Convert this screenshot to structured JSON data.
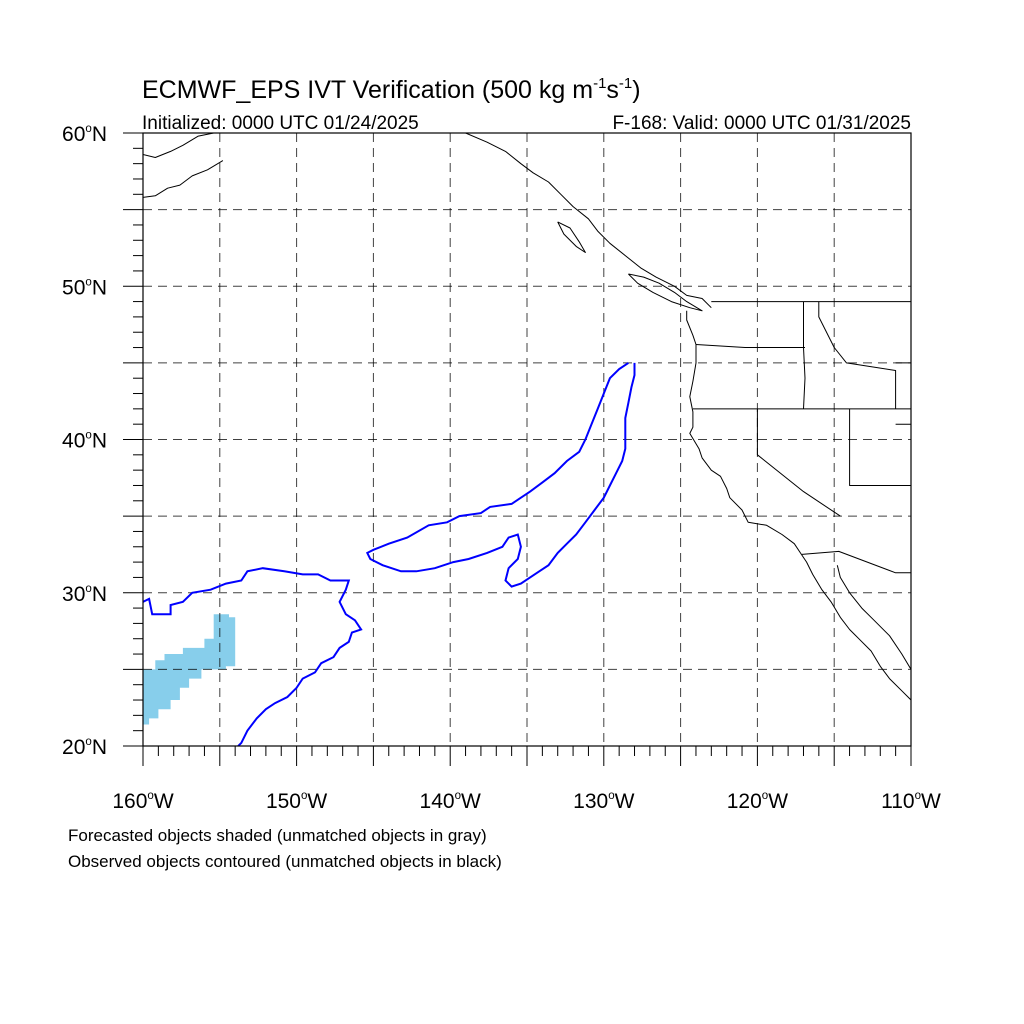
{
  "title": {
    "main": "ECMWF_EPS IVT Verification (500 kg m",
    "exp1": "-1",
    "mid": "s",
    "exp2": "-1",
    "close": ")"
  },
  "subtitle_left": "Initialized: 0000 UTC 01/24/2025",
  "subtitle_right": "F-168: Valid: 0000 UTC 01/31/2025",
  "lat_labels": [
    {
      "deg": "60",
      "hem": "N",
      "value": 60
    },
    {
      "deg": "50",
      "hem": "N",
      "value": 50
    },
    {
      "deg": "40",
      "hem": "N",
      "value": 40
    },
    {
      "deg": "30",
      "hem": "N",
      "value": 30
    },
    {
      "deg": "20",
      "hem": "N",
      "value": 20
    }
  ],
  "lon_labels": [
    {
      "deg": "160",
      "hem": "W",
      "value": -160
    },
    {
      "deg": "150",
      "hem": "W",
      "value": -150
    },
    {
      "deg": "140",
      "hem": "W",
      "value": -140
    },
    {
      "deg": "130",
      "hem": "W",
      "value": -130
    },
    {
      "deg": "120",
      "hem": "W",
      "value": -120
    },
    {
      "deg": "110",
      "hem": "W",
      "value": -110
    }
  ],
  "map_extent": {
    "lon_min": -160,
    "lon_max": -110,
    "lat_min": 20,
    "lat_max": 60
  },
  "grid_spacing_deg": 5,
  "colors": {
    "forecast_fill": "#87ceeb",
    "observed_contour": "#0000ff",
    "coastline": "#000000",
    "grid": "#000000"
  },
  "legend": {
    "line1": "Forecasted objects shaded (unmatched objects in gray)",
    "line2": "Observed objects contoured (unmatched objects in black)"
  },
  "forecast_objects": [
    {
      "name": "forecast-object-hawaii",
      "outline": [
        [
          -160,
          25
        ],
        [
          -159.2,
          25
        ],
        [
          -159.2,
          25.6
        ],
        [
          -158.6,
          25.6
        ],
        [
          -158.6,
          26
        ],
        [
          -157.4,
          26
        ],
        [
          -157.4,
          26.4
        ],
        [
          -156,
          26.4
        ],
        [
          -156,
          27
        ],
        [
          -155.4,
          27
        ],
        [
          -155.4,
          28.6
        ],
        [
          -154.4,
          28.6
        ],
        [
          -154.4,
          28.4
        ],
        [
          -154,
          28.4
        ],
        [
          -154,
          25.2
        ],
        [
          -154.6,
          25.2
        ],
        [
          -154.6,
          25
        ],
        [
          -156.2,
          25
        ],
        [
          -156.2,
          24.4
        ],
        [
          -157,
          24.4
        ],
        [
          -157,
          23.8
        ],
        [
          -157.6,
          23.8
        ],
        [
          -157.6,
          23
        ],
        [
          -158.2,
          23
        ],
        [
          -158.2,
          22.4
        ],
        [
          -159,
          22.4
        ],
        [
          -159,
          21.8
        ],
        [
          -159.6,
          21.8
        ],
        [
          -159.6,
          21.4
        ],
        [
          -160,
          21.4
        ]
      ]
    }
  ],
  "observed_objects": [
    {
      "name": "observed-contour-subtropical",
      "outline": [
        [
          -160,
          29.4
        ],
        [
          -159.6,
          29.6
        ],
        [
          -159.4,
          28.6
        ],
        [
          -158.2,
          28.6
        ],
        [
          -158.2,
          29.2
        ],
        [
          -157.4,
          29.4
        ],
        [
          -156.8,
          30
        ],
        [
          -155.6,
          30.2
        ],
        [
          -154.6,
          30.6
        ],
        [
          -153.6,
          30.8
        ],
        [
          -153.2,
          31.4
        ],
        [
          -152.2,
          31.6
        ],
        [
          -150.8,
          31.4
        ],
        [
          -149.6,
          31.2
        ],
        [
          -148.6,
          31.2
        ],
        [
          -147.8,
          30.8
        ],
        [
          -146.6,
          30.8
        ],
        [
          -146.8,
          30.2
        ],
        [
          -147.2,
          29.4
        ],
        [
          -146.8,
          28.6
        ],
        [
          -146.2,
          28.2
        ],
        [
          -145.8,
          27.6
        ],
        [
          -146.4,
          27.4
        ],
        [
          -146.6,
          26.8
        ],
        [
          -147.2,
          26.4
        ],
        [
          -147.6,
          25.8
        ],
        [
          -148.4,
          25.4
        ],
        [
          -148.8,
          24.8
        ],
        [
          -149.6,
          24.4
        ],
        [
          -150,
          23.8
        ],
        [
          -150.6,
          23.2
        ],
        [
          -151.4,
          22.8
        ],
        [
          -152,
          22.4
        ],
        [
          -152.6,
          21.8
        ],
        [
          -153.2,
          21
        ],
        [
          -153.6,
          20.2
        ],
        [
          -153.8,
          20
        ]
      ]
    },
    {
      "name": "observed-contour-atmospheric-river-arc",
      "outline": [
        [
          -128.4,
          45
        ],
        [
          -129,
          44.6
        ],
        [
          -129.6,
          44
        ],
        [
          -130,
          43
        ],
        [
          -130.4,
          42
        ],
        [
          -130.8,
          41
        ],
        [
          -131.2,
          40
        ],
        [
          -131.6,
          39.2
        ],
        [
          -132.4,
          38.6
        ],
        [
          -133.2,
          37.8
        ],
        [
          -134,
          37.2
        ],
        [
          -134.8,
          36.6
        ],
        [
          -135.4,
          36.2
        ],
        [
          -136,
          35.8
        ],
        [
          -137.4,
          35.6
        ],
        [
          -138,
          35.2
        ],
        [
          -139.4,
          35
        ],
        [
          -140.2,
          34.6
        ],
        [
          -141.4,
          34.4
        ],
        [
          -142.8,
          33.6
        ],
        [
          -144,
          33.2
        ],
        [
          -145,
          32.8
        ],
        [
          -145.4,
          32.6
        ],
        [
          -145.2,
          32.2
        ],
        [
          -144.4,
          31.8
        ],
        [
          -143.2,
          31.4
        ],
        [
          -142.2,
          31.4
        ],
        [
          -141,
          31.6
        ],
        [
          -139.8,
          32
        ],
        [
          -138.8,
          32.2
        ],
        [
          -137.6,
          32.6
        ],
        [
          -136.6,
          33
        ],
        [
          -136.2,
          33.6
        ],
        [
          -135.6,
          33.8
        ],
        [
          -135.4,
          33
        ],
        [
          -135.6,
          32.2
        ],
        [
          -136.2,
          31.6
        ],
        [
          -136.4,
          30.8
        ],
        [
          -136,
          30.4
        ],
        [
          -135.4,
          30.6
        ],
        [
          -134.8,
          31
        ],
        [
          -134.2,
          31.4
        ],
        [
          -133.6,
          31.8
        ],
        [
          -133,
          32.6
        ],
        [
          -132.4,
          33.2
        ],
        [
          -131.8,
          33.8
        ],
        [
          -131.2,
          34.6
        ],
        [
          -130.6,
          35.4
        ],
        [
          -130,
          36.2
        ],
        [
          -129.6,
          37
        ],
        [
          -129.2,
          37.8
        ],
        [
          -128.8,
          38.6
        ],
        [
          -128.6,
          39.4
        ],
        [
          -128.6,
          40.4
        ],
        [
          -128.6,
          41.4
        ],
        [
          -128.4,
          42.4
        ],
        [
          -128.2,
          43.4
        ],
        [
          -128,
          44.2
        ],
        [
          -128,
          45
        ]
      ]
    }
  ],
  "borders": [
    {
      "name": "coast-alaska-aleutian",
      "points": [
        [
          -160,
          58.6
        ],
        [
          -159.2,
          58.4
        ],
        [
          -158.2,
          58.8
        ],
        [
          -157.4,
          59.2
        ],
        [
          -156.4,
          59.8
        ],
        [
          -155.4,
          60
        ]
      ]
    },
    {
      "name": "coast-alaska-peninsula",
      "points": [
        [
          -160,
          55.8
        ],
        [
          -159.2,
          55.9
        ],
        [
          -158.4,
          56.4
        ],
        [
          -157.6,
          56.6
        ],
        [
          -156.8,
          57.2
        ],
        [
          -155.8,
          57.6
        ],
        [
          -154.8,
          58.2
        ]
      ]
    },
    {
      "name": "coast-bc-alaska-panhandle",
      "points": [
        [
          -139,
          60
        ],
        [
          -137.6,
          59.4
        ],
        [
          -136.4,
          58.8
        ],
        [
          -135.4,
          58
        ],
        [
          -134.6,
          57.4
        ],
        [
          -133.6,
          56.8
        ],
        [
          -132.8,
          56
        ],
        [
          -132,
          55.2
        ],
        [
          -131,
          54.4
        ],
        [
          -130.4,
          53.6
        ],
        [
          -129.6,
          52.8
        ],
        [
          -128.6,
          52
        ],
        [
          -127.6,
          51.2
        ],
        [
          -126.6,
          50.6
        ],
        [
          -125.4,
          50
        ],
        [
          -124.6,
          49.4
        ],
        [
          -123.6,
          49.2
        ],
        [
          -123,
          48.6
        ]
      ]
    },
    {
      "name": "coast-vancouver-island",
      "points": [
        [
          -128.4,
          50.8
        ],
        [
          -127.4,
          50.6
        ],
        [
          -126.4,
          50.2
        ],
        [
          -125.4,
          49.6
        ],
        [
          -124.6,
          49
        ],
        [
          -123.6,
          48.4
        ],
        [
          -124.4,
          48.6
        ],
        [
          -125.6,
          49
        ],
        [
          -126.8,
          49.6
        ],
        [
          -127.8,
          50.2
        ],
        [
          -128.4,
          50.8
        ]
      ]
    },
    {
      "name": "coast-haida-gwaii",
      "points": [
        [
          -133,
          54.2
        ],
        [
          -132.2,
          53.8
        ],
        [
          -131.6,
          52.9
        ],
        [
          -131.2,
          52.2
        ],
        [
          -131.8,
          52.6
        ],
        [
          -132.6,
          53.4
        ],
        [
          -133,
          54.2
        ]
      ]
    },
    {
      "name": "coast-us-west",
      "points": [
        [
          -124.6,
          48.4
        ],
        [
          -124.6,
          47.8
        ],
        [
          -124.2,
          46.8
        ],
        [
          -124,
          46.2
        ],
        [
          -124,
          45
        ],
        [
          -124.2,
          43.8
        ],
        [
          -124.4,
          42.8
        ],
        [
          -124.2,
          41.8
        ],
        [
          -124.2,
          40.8
        ],
        [
          -124.4,
          40.4
        ],
        [
          -123.8,
          39.4
        ],
        [
          -123.6,
          38.8
        ],
        [
          -123,
          38
        ],
        [
          -122.4,
          37.6
        ],
        [
          -122,
          36.8
        ],
        [
          -121.8,
          36.2
        ],
        [
          -121,
          35.4
        ],
        [
          -120.6,
          34.6
        ],
        [
          -119.4,
          34.4
        ],
        [
          -118.4,
          33.8
        ],
        [
          -117.6,
          33.2
        ],
        [
          -117.2,
          32.6
        ],
        [
          -116.8,
          32
        ],
        [
          -116.4,
          31.2
        ],
        [
          -115.8,
          30.2
        ],
        [
          -115.2,
          29.4
        ],
        [
          -114.6,
          28.4
        ],
        [
          -114,
          27.6
        ],
        [
          -113.4,
          27
        ],
        [
          -112.6,
          26.2
        ],
        [
          -112,
          25.2
        ],
        [
          -111.4,
          24.4
        ],
        [
          -110.6,
          23.6
        ],
        [
          -110,
          23
        ]
      ]
    },
    {
      "name": "coast-gulf-california",
      "points": [
        [
          -114.8,
          31.8
        ],
        [
          -114.6,
          31
        ],
        [
          -114,
          30
        ],
        [
          -113.2,
          29
        ],
        [
          -112.4,
          28.2
        ],
        [
          -111.4,
          27.2
        ],
        [
          -110.6,
          26
        ],
        [
          -110,
          25
        ]
      ]
    },
    {
      "name": "border-canada-us",
      "points": [
        [
          -123,
          49
        ],
        [
          -110,
          49
        ]
      ]
    },
    {
      "name": "border-wa-or",
      "points": [
        [
          -124,
          46.2
        ],
        [
          -120.8,
          46
        ],
        [
          -116.9,
          46
        ]
      ]
    },
    {
      "name": "border-or-ca",
      "points": [
        [
          -124.2,
          42
        ],
        [
          -110,
          42
        ]
      ]
    },
    {
      "name": "border-idaho-west",
      "points": [
        [
          -117,
          49
        ],
        [
          -117,
          46
        ],
        [
          -116.9,
          44
        ],
        [
          -117,
          42
        ]
      ]
    },
    {
      "name": "border-idaho-montana",
      "points": [
        [
          -116,
          49
        ],
        [
          -116,
          48
        ],
        [
          -115,
          46
        ],
        [
          -114.2,
          45
        ],
        [
          -111,
          44.5
        ],
        [
          -111,
          42
        ]
      ]
    },
    {
      "name": "border-ca-nv",
      "points": [
        [
          -120,
          42
        ],
        [
          -120,
          39
        ],
        [
          -117,
          36.6
        ],
        [
          -114.6,
          35
        ]
      ]
    },
    {
      "name": "border-nv-ut",
      "points": [
        [
          -114,
          42
        ],
        [
          -114,
          37
        ],
        [
          -110,
          37
        ]
      ]
    },
    {
      "name": "border-us-mexico",
      "points": [
        [
          -117.1,
          32.5
        ],
        [
          -114.7,
          32.7
        ],
        [
          -111,
          31.3
        ],
        [
          -110,
          31.3
        ]
      ]
    },
    {
      "name": "border-ut-co",
      "points": [
        [
          -111,
          45
        ],
        [
          -110,
          45
        ],
        [
          -110,
          41
        ],
        [
          -111,
          41
        ]
      ]
    }
  ]
}
